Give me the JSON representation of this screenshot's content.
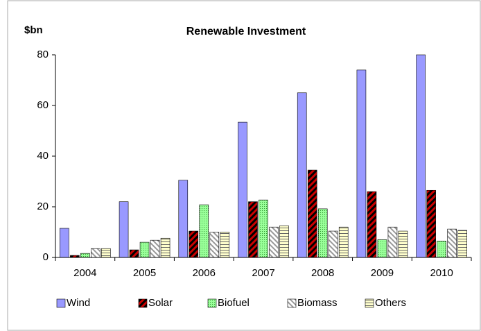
{
  "chart_data": {
    "type": "bar",
    "title": "Renewable Investment",
    "y_label": "$bn",
    "categories": [
      "2004",
      "2005",
      "2006",
      "2007",
      "2008",
      "2009",
      "2010"
    ],
    "series": [
      {
        "name": "Wind",
        "color": "#9999ff",
        "values": [
          11.5,
          22,
          30.5,
          53.4,
          65,
          74,
          80
        ]
      },
      {
        "name": "Solar",
        "color": "#cc0000",
        "values": [
          0.8,
          3,
          10.4,
          22,
          34.5,
          26,
          26.5
        ]
      },
      {
        "name": "Biofuel",
        "color": "#99ff99",
        "values": [
          1.6,
          6,
          20.8,
          22.7,
          19.2,
          7,
          6.5
        ]
      },
      {
        "name": "Biomass",
        "color": "#999999",
        "values": [
          3.5,
          6.8,
          10,
          12,
          10.4,
          12,
          11.2
        ]
      },
      {
        "name": "Others",
        "color": "#ffffcc",
        "values": [
          3.5,
          7.6,
          10,
          12.5,
          12,
          10.4,
          10.7
        ]
      }
    ],
    "ylim": [
      0,
      80
    ],
    "yticks": [
      0,
      20,
      40,
      60,
      80
    ],
    "legend": "bottom"
  }
}
